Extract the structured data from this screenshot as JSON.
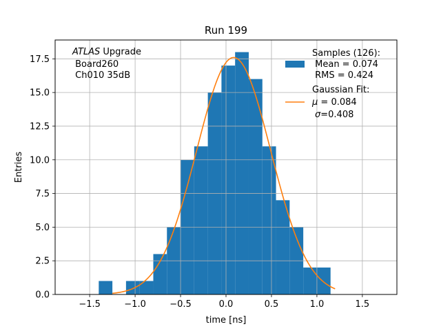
{
  "chart_data": {
    "type": "bar",
    "title": "Run 199",
    "xlabel": "time [ns]",
    "ylabel": "Entries",
    "xlim": [
      -1.88,
      1.88
    ],
    "ylim": [
      0,
      18.9
    ],
    "xticks": [
      -1.5,
      -1.0,
      -0.5,
      0.0,
      0.5,
      1.0,
      1.5
    ],
    "xtick_labels": [
      "−1.5",
      "−1.0",
      "−0.5",
      "0.0",
      "0.5",
      "1.0",
      "1.5"
    ],
    "yticks": [
      0,
      2.5,
      5,
      7.5,
      10,
      12.5,
      15,
      17.5
    ],
    "ytick_labels": [
      "0.0",
      "2.5",
      "5.0",
      "7.5",
      "10.0",
      "12.5",
      "15.0",
      "17.5"
    ],
    "grid": true,
    "bar_color": "#1f77b4",
    "fit_color": "#ff7f0e",
    "histogram": {
      "bin_edges": [
        -1.35,
        -1.2,
        -1.05,
        -0.9,
        -0.75,
        -0.6,
        -0.45,
        -0.3,
        -0.15,
        0.0,
        0.15,
        0.3,
        0.45,
        0.6,
        0.75,
        0.9,
        1.05,
        1.2
      ],
      "counts": [
        1,
        0,
        1,
        1,
        3,
        5,
        10,
        11,
        15,
        17,
        18,
        16,
        11,
        7,
        5,
        2,
        2
      ],
      "offset_bins": {
        "edges": [
          -1.4,
          -1.25,
          -1.1,
          -0.95,
          -0.8,
          -0.65,
          -0.5,
          -0.35,
          -0.2,
          -0.05,
          0.1,
          0.25,
          0.4,
          0.55,
          0.7,
          0.85,
          1.0,
          1.15,
          1.3
        ]
      }
    },
    "gaussian_fit": {
      "mu": 0.084,
      "sigma": 0.408,
      "amplitude": 17.6,
      "x_range": [
        -1.25,
        1.2
      ]
    },
    "legend": {
      "location": "upper right",
      "samples_title": "Samples (126):",
      "samples_mean": " Mean = 0.074",
      "samples_rms": " RMS = 0.424",
      "fit_title": "Gaussian Fit:",
      "fit_mu_symbol": "μ",
      "fit_mu_value": " = 0.084",
      "fit_sigma_symbol": "σ",
      "fit_sigma_value": "=0.408"
    },
    "annotation": {
      "experiment": "ATLAS",
      "experiment_suffix": " Upgrade",
      "board": " Board260",
      "channel": " Ch010 35dB"
    }
  }
}
